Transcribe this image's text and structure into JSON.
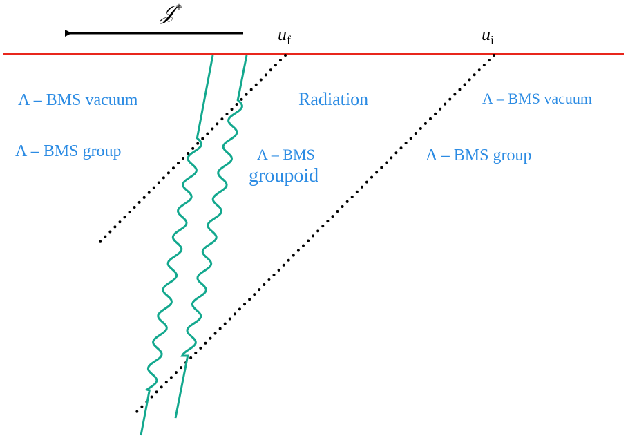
{
  "labels": {
    "scri": "𝒥",
    "scri_sup": "+",
    "u_f": "u",
    "u_f_sub": "f",
    "u_i": "u",
    "u_i_sub": "i",
    "left_vacuum": "Λ – BMS vacuum",
    "left_group": "Λ – BMS group",
    "mid_radiation": "Radiation",
    "mid_groupoid_1": "Λ – BMS",
    "mid_groupoid_2": "groupoid",
    "right_vacuum": "Λ – BMS vacuum",
    "right_group": "Λ – BMS group"
  },
  "colors": {
    "boundary": "#e8261c",
    "wave": "#13a88e",
    "text": "#2b8be3",
    "dotted": "#000000",
    "arrow": "#000000"
  }
}
